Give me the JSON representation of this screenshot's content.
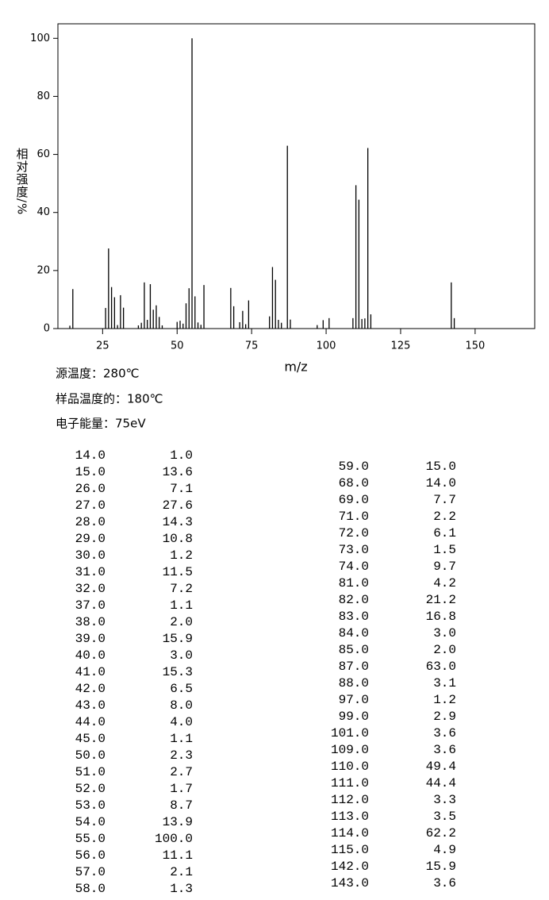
{
  "chart_data": {
    "type": "bar",
    "xlabel": "m/z",
    "ylabel": "相对强度/%",
    "color": "#000000",
    "x": [
      14,
      15,
      26,
      27,
      28,
      29,
      30,
      31,
      32,
      37,
      38,
      39,
      40,
      41,
      42,
      43,
      44,
      45,
      50,
      51,
      52,
      53,
      54,
      55,
      56,
      57,
      58,
      59,
      68,
      69,
      71,
      72,
      73,
      74,
      81,
      82,
      83,
      84,
      85,
      87,
      88,
      97,
      99,
      101,
      109,
      110,
      111,
      112,
      113,
      114,
      115,
      142,
      143
    ],
    "values": [
      1.0,
      13.6,
      7.1,
      27.6,
      14.3,
      10.8,
      1.2,
      11.5,
      7.2,
      1.1,
      2.0,
      15.9,
      3.0,
      15.3,
      6.5,
      8.0,
      4.0,
      1.1,
      2.3,
      2.7,
      1.7,
      8.7,
      13.9,
      100.0,
      11.1,
      2.1,
      1.3,
      15.0,
      14.0,
      7.7,
      2.2,
      6.1,
      1.5,
      9.7,
      4.2,
      21.2,
      16.8,
      3.0,
      2.0,
      63.0,
      3.1,
      1.2,
      2.9,
      3.6,
      3.6,
      49.4,
      44.4,
      3.3,
      3.5,
      62.2,
      4.9,
      15.9,
      3.6
    ],
    "xlim": [
      10,
      170
    ],
    "xticks": [
      25,
      50,
      75,
      100,
      125,
      150
    ],
    "ylim": [
      0,
      105
    ],
    "yticks": [
      0,
      20,
      40,
      60,
      80,
      100
    ]
  },
  "conditions": [
    "源温度：280℃",
    "样品温度的：180℃",
    "电子能量：75eV"
  ],
  "table": {
    "left": [
      [
        "14.0",
        "1.0"
      ],
      [
        "15.0",
        "13.6"
      ],
      [
        "26.0",
        "7.1"
      ],
      [
        "27.0",
        "27.6"
      ],
      [
        "28.0",
        "14.3"
      ],
      [
        "29.0",
        "10.8"
      ],
      [
        "30.0",
        "1.2"
      ],
      [
        "31.0",
        "11.5"
      ],
      [
        "32.0",
        "7.2"
      ],
      [
        "37.0",
        "1.1"
      ],
      [
        "38.0",
        "2.0"
      ],
      [
        "39.0",
        "15.9"
      ],
      [
        "40.0",
        "3.0"
      ],
      [
        "41.0",
        "15.3"
      ],
      [
        "42.0",
        "6.5"
      ],
      [
        "43.0",
        "8.0"
      ],
      [
        "44.0",
        "4.0"
      ],
      [
        "45.0",
        "1.1"
      ],
      [
        "50.0",
        "2.3"
      ],
      [
        "51.0",
        "2.7"
      ],
      [
        "52.0",
        "1.7"
      ],
      [
        "53.0",
        "8.7"
      ],
      [
        "54.0",
        "13.9"
      ],
      [
        "55.0",
        "100.0"
      ],
      [
        "56.0",
        "11.1"
      ],
      [
        "57.0",
        "2.1"
      ],
      [
        "58.0",
        "1.3"
      ]
    ],
    "right": [
      [
        "59.0",
        "15.0"
      ],
      [
        "68.0",
        "14.0"
      ],
      [
        "69.0",
        "7.7"
      ],
      [
        "71.0",
        "2.2"
      ],
      [
        "72.0",
        "6.1"
      ],
      [
        "73.0",
        "1.5"
      ],
      [
        "74.0",
        "9.7"
      ],
      [
        "81.0",
        "4.2"
      ],
      [
        "82.0",
        "21.2"
      ],
      [
        "83.0",
        "16.8"
      ],
      [
        "84.0",
        "3.0"
      ],
      [
        "85.0",
        "2.0"
      ],
      [
        "87.0",
        "63.0"
      ],
      [
        "88.0",
        "3.1"
      ],
      [
        "97.0",
        "1.2"
      ],
      [
        "99.0",
        "2.9"
      ],
      [
        "101.0",
        "3.6"
      ],
      [
        "109.0",
        "3.6"
      ],
      [
        "110.0",
        "49.4"
      ],
      [
        "111.0",
        "44.4"
      ],
      [
        "112.0",
        "3.3"
      ],
      [
        "113.0",
        "3.5"
      ],
      [
        "114.0",
        "62.2"
      ],
      [
        "115.0",
        "4.9"
      ],
      [
        "142.0",
        "15.9"
      ],
      [
        "143.0",
        "3.6"
      ]
    ]
  }
}
